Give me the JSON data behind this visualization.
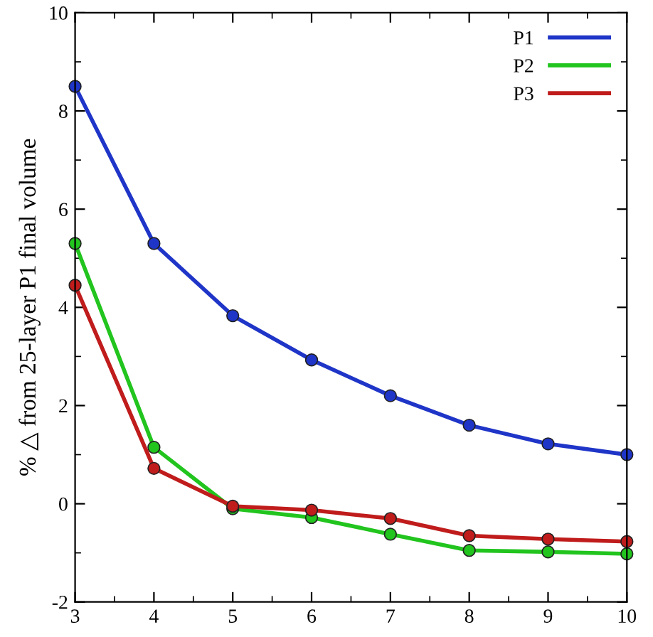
{
  "chart_data": {
    "type": "line",
    "ylabel": "% △ from 25-layer P1 final volume",
    "x": [
      3,
      4,
      5,
      6,
      7,
      8,
      9,
      10
    ],
    "series": [
      {
        "name": "P1",
        "color": "#1f35c8",
        "values": [
          8.5,
          5.3,
          3.83,
          2.93,
          2.2,
          1.6,
          1.22,
          1.0
        ]
      },
      {
        "name": "P2",
        "color": "#22c41e",
        "values": [
          5.3,
          1.15,
          -0.1,
          -0.28,
          -0.62,
          -0.95,
          -0.98,
          -1.02
        ]
      },
      {
        "name": "P3",
        "color": "#c01c1c",
        "values": [
          4.45,
          0.72,
          -0.05,
          -0.13,
          -0.3,
          -0.65,
          -0.72,
          -0.77
        ]
      }
    ],
    "xlim": [
      3,
      10
    ],
    "xticks": [
      3,
      4,
      5,
      6,
      7,
      8,
      9,
      10
    ],
    "ylim": [
      -2,
      10
    ],
    "yticks": [
      -2,
      0,
      2,
      4,
      6,
      8,
      10
    ],
    "grid": false,
    "legend": "top right",
    "marker": "circle",
    "line_style": "solid"
  }
}
